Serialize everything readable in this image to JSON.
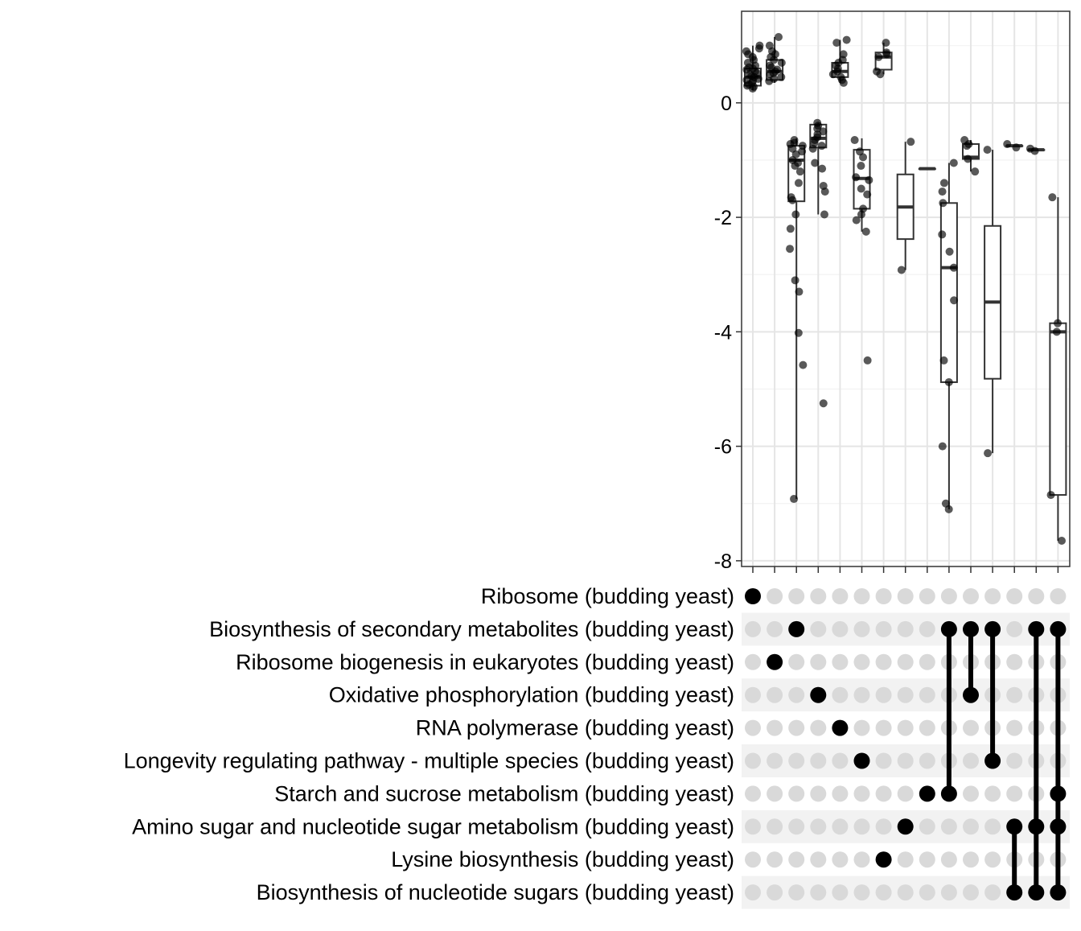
{
  "chart_data": {
    "type": "upset-boxplot",
    "title": "",
    "xlabel": "",
    "ylabel": "",
    "ylim": [
      -8.1,
      1.6
    ],
    "y_ticks": [
      0,
      -2,
      -4,
      -6,
      -8
    ],
    "y_tick_labels": [
      "0",
      "-2",
      "-4",
      "-6",
      "-8"
    ],
    "grid": true,
    "sets": [
      "Ribosome (budding yeast)",
      "Biosynthesis of secondary metabolites (budding yeast)",
      "Ribosome biogenesis in eukaryotes (budding yeast)",
      "Oxidative phosphorylation (budding yeast)",
      "RNA polymerase (budding yeast)",
      "Longevity regulating pathway - multiple species (budding yeast)",
      "Starch and sucrose metabolism (budding yeast)",
      "Amino sugar and nucleotide sugar metabolism (budding yeast)",
      "Lysine biosynthesis (budding yeast)",
      "Biosynthesis of nucleotide sugars (budding yeast)"
    ],
    "intersections": [
      {
        "members": [
          0
        ],
        "box": {
          "q1": 0.3,
          "median": 0.45,
          "q3": 0.6,
          "low": 0.22,
          "high": 1.0
        },
        "points": [
          0.25,
          0.28,
          0.3,
          0.32,
          0.35,
          0.38,
          0.4,
          0.42,
          0.45,
          0.47,
          0.5,
          0.52,
          0.55,
          0.58,
          0.6,
          0.62,
          0.65,
          0.7,
          0.75,
          0.8,
          0.85,
          0.9,
          0.95,
          1.0
        ]
      },
      {
        "members": [
          2
        ],
        "box": {
          "q1": 0.4,
          "median": 0.55,
          "q3": 0.75,
          "low": 0.35,
          "high": 1.15
        },
        "points": [
          0.38,
          0.42,
          0.45,
          0.5,
          0.52,
          0.55,
          0.58,
          0.62,
          0.65,
          0.7,
          0.75,
          0.8,
          0.85,
          0.9,
          1.0,
          1.15
        ]
      },
      {
        "members": [
          1
        ],
        "box": {
          "q1": -1.72,
          "median": -1.0,
          "q3": -0.75,
          "low": -6.92,
          "high": -0.62
        },
        "points": [
          -0.65,
          -0.7,
          -0.72,
          -0.75,
          -0.8,
          -0.85,
          -0.9,
          -1.0,
          -1.05,
          -1.1,
          -1.2,
          -1.4,
          -1.65,
          -1.7,
          -1.95,
          -2.2,
          -2.55,
          -3.1,
          -3.3,
          -4.02,
          -4.58,
          -6.92
        ]
      },
      {
        "members": [
          3
        ],
        "box": {
          "q1": -0.78,
          "median": -0.62,
          "q3": -0.38,
          "low": -1.95,
          "high": -0.35
        },
        "points": [
          -0.35,
          -0.4,
          -0.45,
          -0.5,
          -0.55,
          -0.6,
          -0.65,
          -0.7,
          -0.75,
          -0.8,
          -1.05,
          -1.15,
          -1.45,
          -1.55,
          -1.95,
          -5.25
        ]
      },
      {
        "members": [
          4
        ],
        "box": {
          "q1": 0.45,
          "median": 0.55,
          "q3": 0.7,
          "low": 0.35,
          "high": 1.1
        },
        "points": [
          0.35,
          0.4,
          0.45,
          0.5,
          0.55,
          0.6,
          0.65,
          0.7,
          0.75,
          0.85,
          1.05,
          1.1
        ]
      },
      {
        "members": [
          5
        ],
        "box": {
          "q1": -1.85,
          "median": -1.32,
          "q3": -0.82,
          "low": -2.25,
          "high": -0.62
        },
        "points": [
          -0.65,
          -0.85,
          -0.95,
          -1.1,
          -1.3,
          -1.35,
          -1.5,
          -1.6,
          -1.85,
          -1.95,
          -2.05,
          -2.25,
          -4.5
        ]
      },
      {
        "members": [
          8
        ],
        "box": {
          "q1": 0.58,
          "median": 0.8,
          "q3": 0.88,
          "low": 0.5,
          "high": 1.05
        },
        "points": [
          0.5,
          0.55,
          0.8,
          0.85,
          0.88,
          1.05
        ]
      },
      {
        "members": [
          7
        ],
        "box": {
          "q1": -2.38,
          "median": -1.82,
          "q3": -1.25,
          "low": -2.92,
          "high": -0.68
        },
        "points": [
          -0.68,
          -2.92
        ]
      },
      {
        "members": [
          6
        ],
        "box": {
          "q1": -1.15,
          "median": -1.15,
          "q3": -1.15,
          "low": -1.15,
          "high": -1.15
        },
        "points": []
      },
      {
        "members": [
          1,
          6
        ],
        "box": {
          "q1": -4.88,
          "median": -2.88,
          "q3": -1.75,
          "low": -7.1,
          "high": -1.05
        },
        "points": [
          -1.05,
          -1.4,
          -1.55,
          -1.75,
          -2.3,
          -2.6,
          -2.88,
          -3.45,
          -4.5,
          -4.88,
          -6.0,
          -7.0,
          -7.1
        ]
      },
      {
        "members": [
          1,
          3
        ],
        "box": {
          "q1": -0.98,
          "median": -0.95,
          "q3": -0.72,
          "low": -1.2,
          "high": -0.65
        },
        "points": [
          -0.65,
          -0.72,
          -0.75,
          -0.98,
          -1.2
        ]
      },
      {
        "members": [
          1,
          5
        ],
        "box": {
          "q1": -4.82,
          "median": -3.48,
          "q3": -2.15,
          "low": -6.12,
          "high": -0.82
        },
        "points": [
          -0.82,
          -6.12
        ]
      },
      {
        "members": [
          7,
          9
        ],
        "box": {
          "q1": -0.75,
          "median": -0.75,
          "q3": -0.75,
          "low": -0.75,
          "high": -0.75
        },
        "points": [
          -0.72,
          -0.78
        ]
      },
      {
        "members": [
          1,
          7,
          9
        ],
        "box": {
          "q1": -0.82,
          "median": -0.82,
          "q3": -0.82,
          "low": -0.82,
          "high": -0.82
        },
        "points": [
          -0.8,
          -0.84
        ]
      },
      {
        "members": [
          1,
          6,
          7,
          9
        ],
        "box": {
          "q1": -6.85,
          "median": -4.0,
          "q3": -3.85,
          "low": -7.65,
          "high": -1.65
        },
        "points": [
          -1.65,
          -3.85,
          -4.0,
          -6.85,
          -7.65
        ]
      }
    ],
    "colors": {
      "point": "#000000",
      "active_dot": "#000000",
      "inactive_dot": "#d9d9d9",
      "stripe": "#f2f2f2",
      "grid_major": "#e5e5e5",
      "grid_minor": "#f2f2f2",
      "panel_border": "#333333",
      "box_fill": "#ffffff",
      "box_stroke": "#333333"
    }
  }
}
